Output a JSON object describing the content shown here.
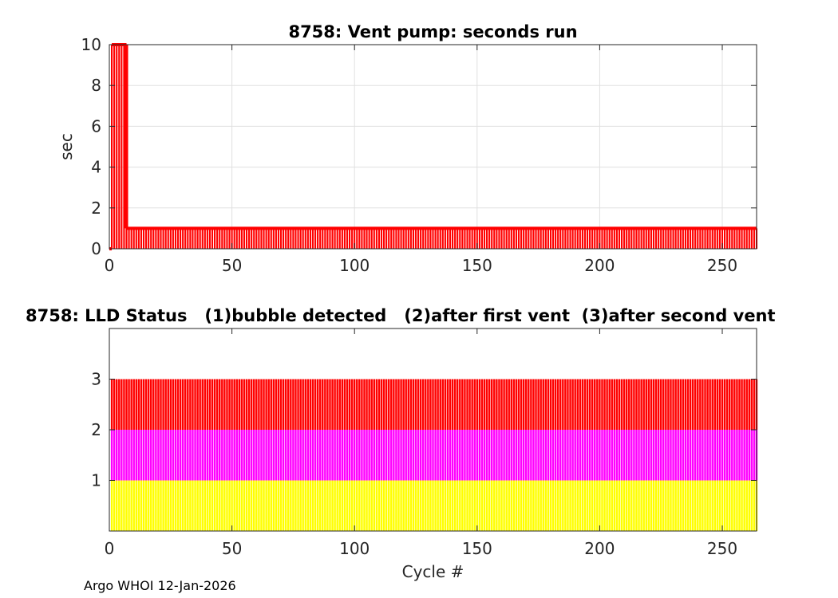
{
  "footer": "Argo WHOI 12-Jan-2026",
  "chart_data": [
    {
      "type": "bar",
      "title": "8758: Vent pump: seconds run",
      "xlabel": "",
      "ylabel": "sec",
      "xlim": [
        0,
        264
      ],
      "ylim": [
        0,
        10
      ],
      "xticks": [
        0,
        50,
        100,
        150,
        200,
        250
      ],
      "yticks": [
        0,
        2,
        4,
        6,
        8,
        10
      ],
      "grid": true,
      "color": "#ff0000",
      "series": [
        {
          "name": "seconds run",
          "segments": [
            {
              "from": 1,
              "to": 7,
              "value": 10
            },
            {
              "from": 8,
              "to": 264,
              "value": 1
            }
          ]
        }
      ]
    },
    {
      "type": "bar",
      "title": "8758: LLD Status   (1)bubble detected   (2)after first vent  (3)after second vent",
      "xlabel": "Cycle #",
      "ylabel": "",
      "xlim": [
        0,
        264
      ],
      "ylim": [
        0,
        4
      ],
      "xticks": [
        0,
        50,
        100,
        150,
        200,
        250
      ],
      "yticks": [
        1,
        2,
        3
      ],
      "grid": false,
      "series": [
        {
          "name": "(1)bubble detected",
          "color": "#ffff00",
          "band": [
            0,
            1
          ]
        },
        {
          "name": "(2)after first vent",
          "color": "#ff00ff",
          "band": [
            1,
            2
          ]
        },
        {
          "name": "(3)after second vent",
          "color": "#ff0000",
          "band": [
            2,
            3
          ]
        }
      ],
      "cycles": {
        "from": 1,
        "to": 264
      }
    }
  ]
}
